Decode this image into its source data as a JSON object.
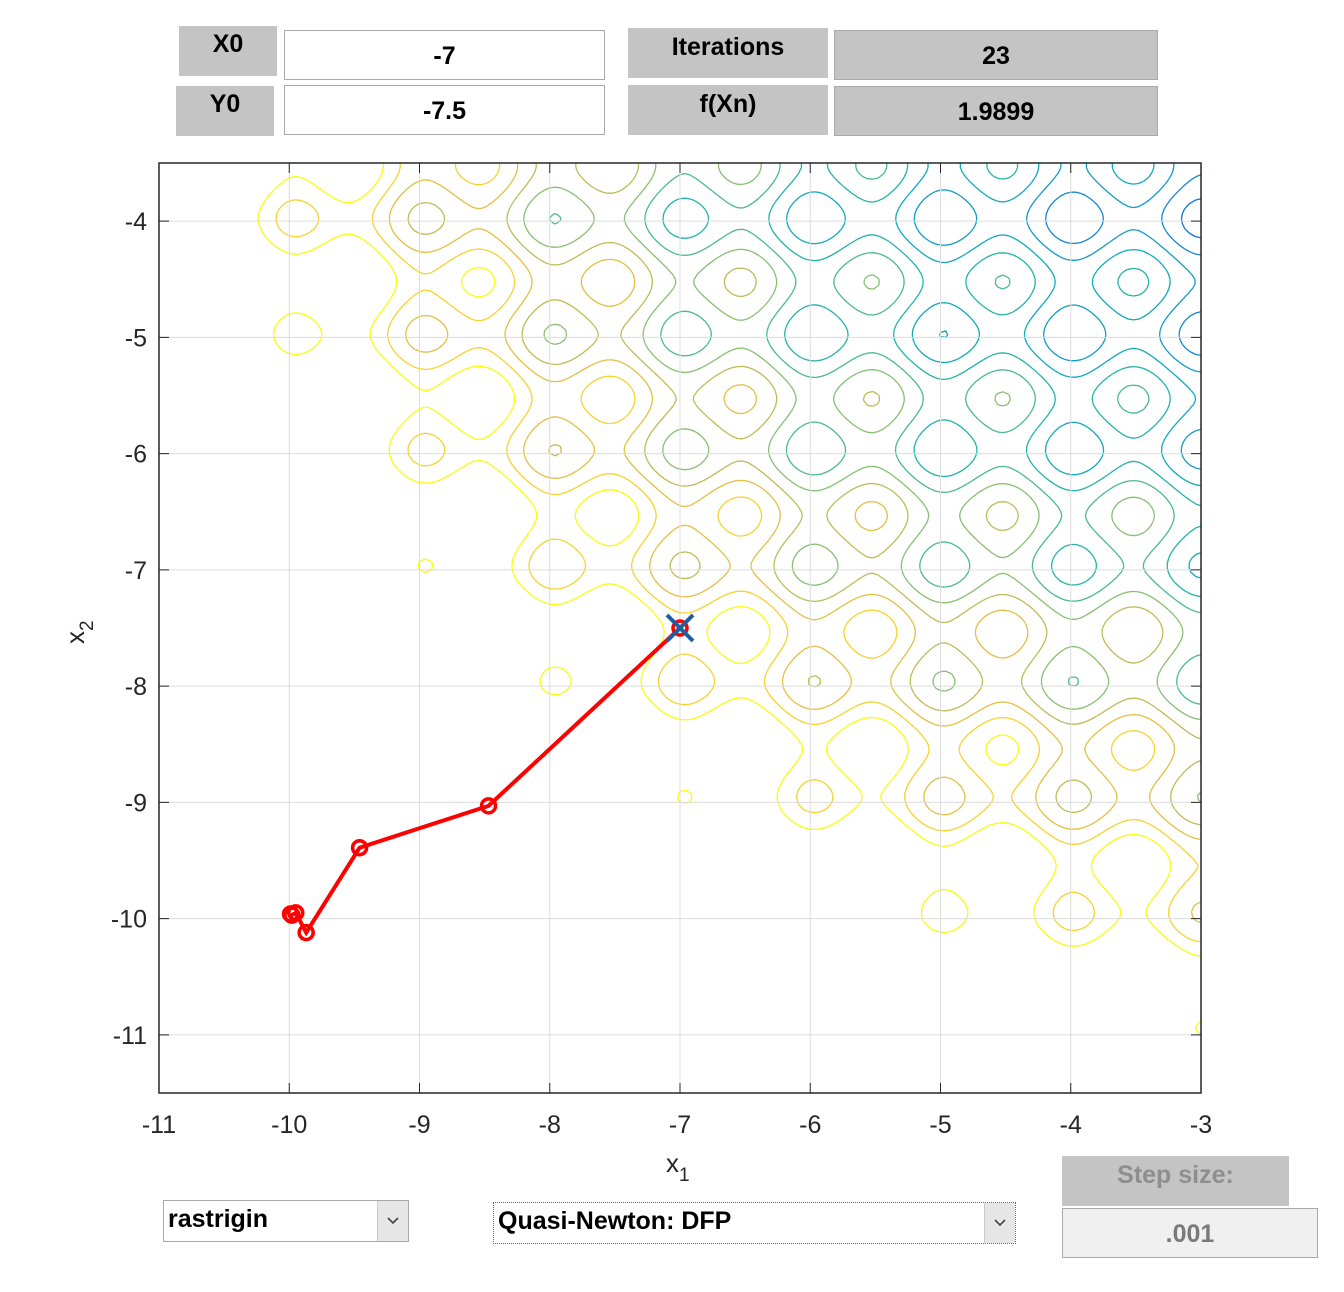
{
  "inputs": {
    "x0_label": "X0",
    "x0_value": "-7",
    "y0_label": "Y0",
    "y0_value": "-7.5",
    "iterations_label": "Iterations",
    "iterations_value": "23",
    "fxn_label": "f(Xn)",
    "fxn_value": "1.9899"
  },
  "controls": {
    "function_select": "rastrigin",
    "method_select": "Quasi-Newton: DFP",
    "step_size_label": "Step size:",
    "step_size_value": ".001"
  },
  "icons": {
    "dropdown": "chevron-down-icon"
  },
  "chart_data": {
    "type": "contour",
    "function": "rastrigin",
    "xlabel_base": "x",
    "xlabel_sub": "1",
    "ylabel_base": "x",
    "ylabel_sub": "2",
    "xlim": [
      -11,
      -3
    ],
    "ylim": [
      -11.5,
      -3.5
    ],
    "xticks": [
      -11,
      -10,
      -9,
      -8,
      -7,
      -6,
      -5,
      -4,
      -3
    ],
    "yticks": [
      -11,
      -10,
      -9,
      -8,
      -7,
      -6,
      -5,
      -4
    ],
    "grid": true,
    "colormap": "parula",
    "contour_levels": [
      10,
      20,
      30,
      40,
      50,
      60,
      70,
      80,
      90,
      100,
      110,
      120,
      130
    ],
    "path": {
      "color": "#ff0000",
      "points": [
        [
          -7.0,
          -7.5
        ],
        [
          -8.47,
          -9.03
        ],
        [
          -9.46,
          -9.39
        ],
        [
          -9.87,
          -10.12
        ],
        [
          -9.95,
          -9.95
        ],
        [
          -9.98,
          -9.97
        ],
        [
          -9.99,
          -9.96
        ]
      ]
    },
    "start_marker": {
      "x": -7.0,
      "y": -7.5,
      "shape": "x",
      "color": "#1f5fa0"
    }
  }
}
